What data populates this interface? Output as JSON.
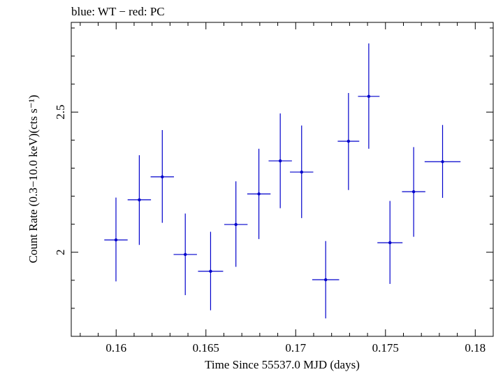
{
  "chart_data": {
    "type": "scatter",
    "title": "blue: WT − red: PC",
    "xlabel": "Time Since 55537.0 MJD (days)",
    "ylabel": "Count Rate (0.3−10.0 keV)(cts s⁻¹)",
    "xlim": [
      0.1575,
      0.181
    ],
    "ylim": [
      1.7,
      2.82
    ],
    "x_ticks": [
      0.16,
      0.165,
      0.17,
      0.175,
      0.18
    ],
    "x_tick_labels": [
      "0.16",
      "0.165",
      "0.17",
      "0.175",
      "0.18"
    ],
    "y_ticks": [
      2,
      2.5
    ],
    "y_tick_labels": [
      "2",
      "2.5"
    ],
    "series_color": "#0000cc",
    "grid": false,
    "points": [
      {
        "x": 0.15999,
        "y": 2.044,
        "xerr": 0.00065,
        "yerr_lo": 0.148,
        "yerr_hi": 0.151
      },
      {
        "x": 0.16129,
        "y": 2.187,
        "xerr": 0.00065,
        "yerr_lo": 0.161,
        "yerr_hi": 0.159
      },
      {
        "x": 0.16257,
        "y": 2.269,
        "xerr": 0.00065,
        "yerr_lo": 0.164,
        "yerr_hi": 0.167
      },
      {
        "x": 0.16385,
        "y": 1.992,
        "xerr": 0.00065,
        "yerr_lo": 0.145,
        "yerr_hi": 0.146
      },
      {
        "x": 0.16526,
        "y": 1.932,
        "xerr": 0.0007,
        "yerr_lo": 0.139,
        "yerr_hi": 0.141
      },
      {
        "x": 0.16667,
        "y": 2.099,
        "xerr": 0.00065,
        "yerr_lo": 0.151,
        "yerr_hi": 0.154
      },
      {
        "x": 0.16795,
        "y": 2.208,
        "xerr": 0.00065,
        "yerr_lo": 0.161,
        "yerr_hi": 0.161
      },
      {
        "x": 0.16914,
        "y": 2.326,
        "xerr": 0.00065,
        "yerr_lo": 0.169,
        "yerr_hi": 0.169
      },
      {
        "x": 0.17033,
        "y": 2.286,
        "xerr": 0.00065,
        "yerr_lo": 0.164,
        "yerr_hi": 0.166
      },
      {
        "x": 0.17167,
        "y": 1.902,
        "xerr": 0.00075,
        "yerr_lo": 0.138,
        "yerr_hi": 0.138
      },
      {
        "x": 0.17294,
        "y": 2.396,
        "xerr": 0.0006,
        "yerr_lo": 0.174,
        "yerr_hi": 0.172
      },
      {
        "x": 0.17407,
        "y": 2.556,
        "xerr": 0.0006,
        "yerr_lo": 0.187,
        "yerr_hi": 0.189
      },
      {
        "x": 0.17525,
        "y": 2.034,
        "xerr": 0.0007,
        "yerr_lo": 0.147,
        "yerr_hi": 0.149
      },
      {
        "x": 0.17657,
        "y": 2.216,
        "xerr": 0.00065,
        "yerr_lo": 0.161,
        "yerr_hi": 0.159
      },
      {
        "x": 0.17818,
        "y": 2.323,
        "xerr": 0.001,
        "yerr_lo": 0.129,
        "yerr_hi": 0.131
      }
    ]
  }
}
